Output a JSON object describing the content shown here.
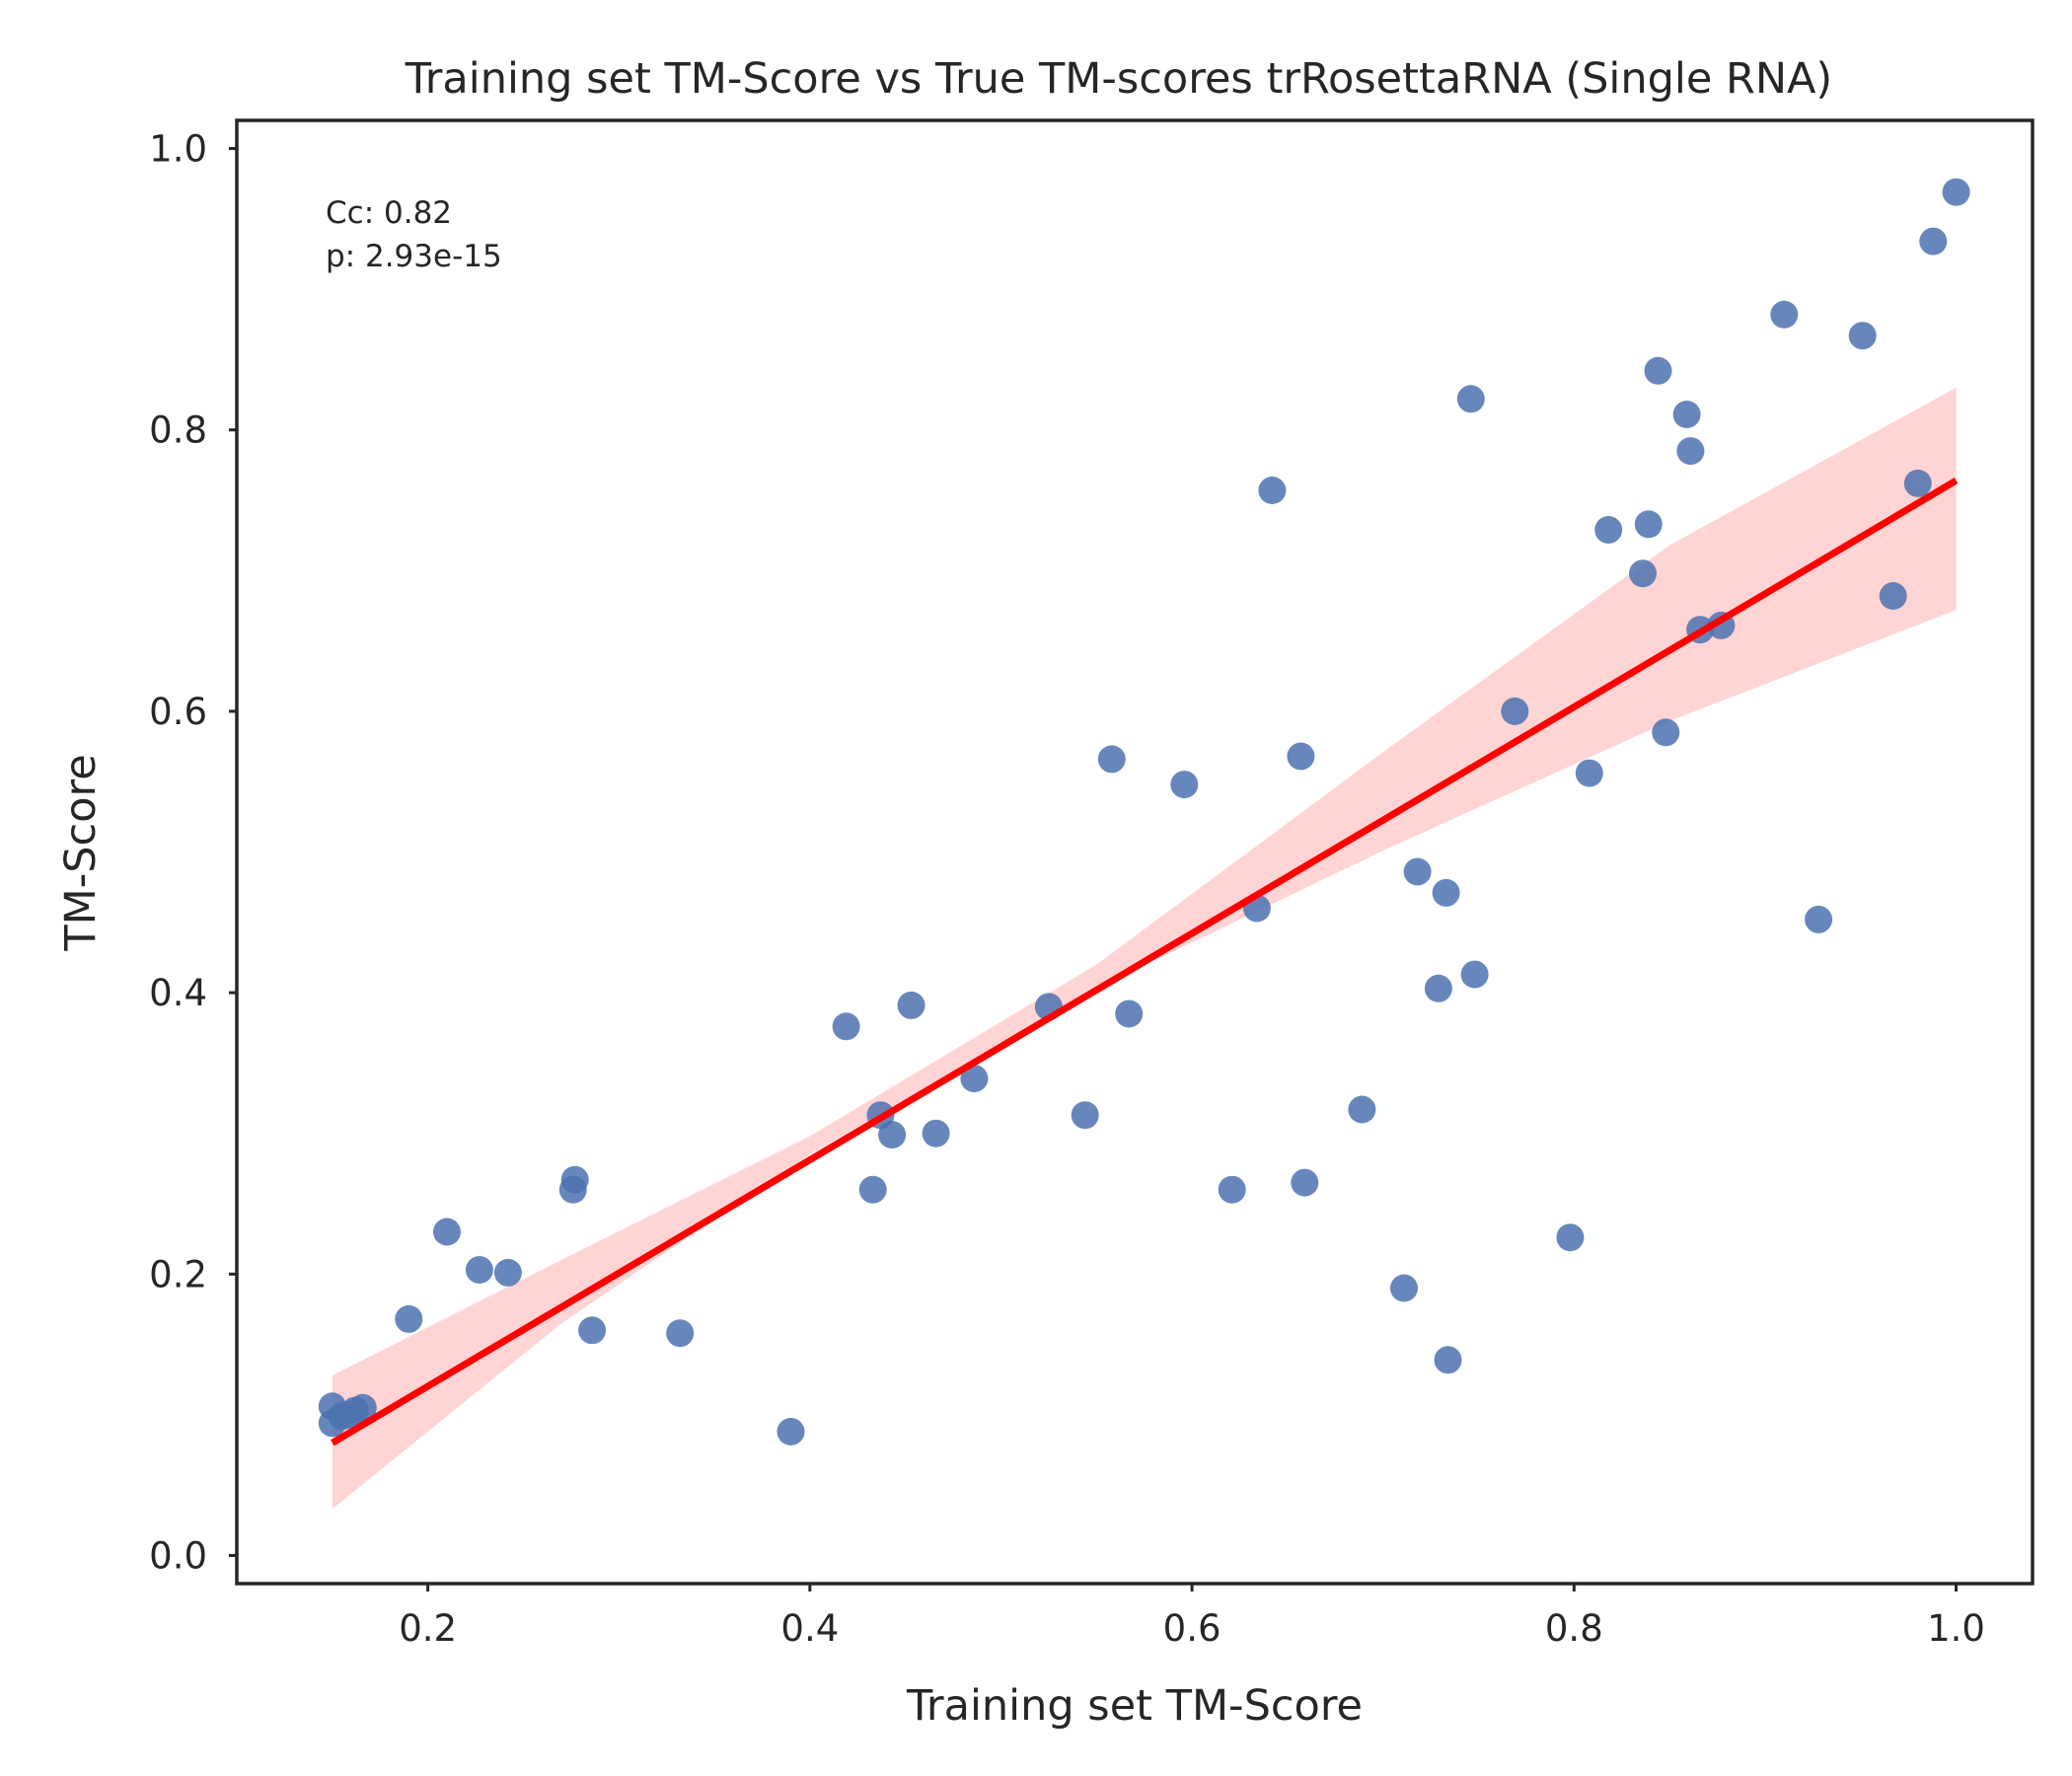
{
  "chart_data": {
    "type": "scatter",
    "title": "Training set TM-Score vs True TM-scores trRosettaRNA (Single RNA)",
    "xlabel": "Training set TM-Score",
    "ylabel": "TM-Score",
    "xlim": [
      0.1,
      1.04
    ],
    "ylim": [
      -0.02,
      1.02
    ],
    "xticks": [
      0.2,
      0.4,
      0.6,
      0.8,
      1.0
    ],
    "xtick_labels": [
      "0.2",
      "0.4",
      "0.6",
      "0.8",
      "1.0"
    ],
    "yticks": [
      0.0,
      0.2,
      0.4,
      0.6,
      0.8,
      1.0
    ],
    "ytick_labels": [
      "0.0",
      "0.2",
      "0.4",
      "0.6",
      "0.8",
      "1.0"
    ],
    "grid": false,
    "annotation": {
      "cc": "Cc: 0.82",
      "p": "p: 2.93e-15"
    },
    "point_color": "#4c72b0",
    "line_color": "#ff0000",
    "band_color": "#ffcccc",
    "regression": {
      "x0": 0.15,
      "y0": 0.08,
      "x1": 1.0,
      "y1": 0.764
    },
    "confidence_band": {
      "x": [
        0.15,
        0.27,
        0.4,
        0.55,
        0.7,
        0.85,
        1.0
      ],
      "lower": [
        0.033,
        0.165,
        0.285,
        0.403,
        0.501,
        0.593,
        0.672
      ],
      "upper": [
        0.128,
        0.21,
        0.298,
        0.42,
        0.571,
        0.718,
        0.83
      ]
    },
    "points": [
      [
        0.15,
        0.094
      ],
      [
        0.15,
        0.106
      ],
      [
        0.155,
        0.099
      ],
      [
        0.158,
        0.1
      ],
      [
        0.162,
        0.103
      ],
      [
        0.166,
        0.105
      ],
      [
        0.19,
        0.168
      ],
      [
        0.21,
        0.23
      ],
      [
        0.227,
        0.203
      ],
      [
        0.242,
        0.201
      ],
      [
        0.276,
        0.26
      ],
      [
        0.277,
        0.267
      ],
      [
        0.286,
        0.16
      ],
      [
        0.332,
        0.158
      ],
      [
        0.39,
        0.088
      ],
      [
        0.419,
        0.376
      ],
      [
        0.433,
        0.26
      ],
      [
        0.437,
        0.313
      ],
      [
        0.443,
        0.299
      ],
      [
        0.453,
        0.391
      ],
      [
        0.466,
        0.3
      ],
      [
        0.486,
        0.339
      ],
      [
        0.525,
        0.39
      ],
      [
        0.544,
        0.313
      ],
      [
        0.558,
        0.566
      ],
      [
        0.567,
        0.385
      ],
      [
        0.596,
        0.548
      ],
      [
        0.621,
        0.26
      ],
      [
        0.634,
        0.46
      ],
      [
        0.642,
        0.757
      ],
      [
        0.657,
        0.568
      ],
      [
        0.659,
        0.265
      ],
      [
        0.689,
        0.317
      ],
      [
        0.711,
        0.19
      ],
      [
        0.718,
        0.486
      ],
      [
        0.729,
        0.403
      ],
      [
        0.733,
        0.471
      ],
      [
        0.734,
        0.139
      ],
      [
        0.746,
        0.822
      ],
      [
        0.748,
        0.413
      ],
      [
        0.769,
        0.6
      ],
      [
        0.798,
        0.226
      ],
      [
        0.808,
        0.556
      ],
      [
        0.818,
        0.729
      ],
      [
        0.836,
        0.698
      ],
      [
        0.839,
        0.733
      ],
      [
        0.844,
        0.842
      ],
      [
        0.848,
        0.585
      ],
      [
        0.859,
        0.811
      ],
      [
        0.861,
        0.785
      ],
      [
        0.866,
        0.658
      ],
      [
        0.877,
        0.661
      ],
      [
        0.91,
        0.882
      ],
      [
        0.928,
        0.452
      ],
      [
        0.951,
        0.867
      ],
      [
        0.967,
        0.682
      ],
      [
        0.98,
        0.762
      ],
      [
        0.988,
        0.934
      ],
      [
        1.0,
        0.969
      ]
    ]
  }
}
